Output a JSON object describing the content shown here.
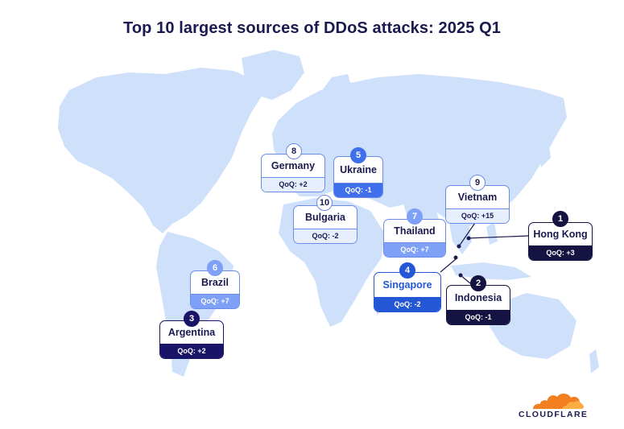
{
  "title": "Top 10 largest sources of DDoS attacks: 2025 Q1",
  "colors": {
    "land": "#cfe0fb",
    "card_border": "#6b8be8",
    "dark": "#141342",
    "navy": "#1a1469",
    "blue": "#2457d6",
    "mid_blue": "#7ea0f7",
    "logo_orange": "#f38020"
  },
  "entries": [
    {
      "rank": "1",
      "country": "Hong Kong",
      "qoq": "QoQ: +3"
    },
    {
      "rank": "2",
      "country": "Indonesia",
      "qoq": "QoQ: -1"
    },
    {
      "rank": "3",
      "country": "Argentina",
      "qoq": "QoQ: +2"
    },
    {
      "rank": "4",
      "country": "Singapore",
      "qoq": "QoQ: -2"
    },
    {
      "rank": "5",
      "country": "Ukraine",
      "qoq": "QoQ: -1"
    },
    {
      "rank": "6",
      "country": "Brazil",
      "qoq": "QoQ: +7"
    },
    {
      "rank": "7",
      "country": "Thailand",
      "qoq": "QoQ: +7"
    },
    {
      "rank": "8",
      "country": "Germany",
      "qoq": "QoQ: +2"
    },
    {
      "rank": "9",
      "country": "Vietnam",
      "qoq": "QoQ: +15"
    },
    {
      "rank": "10",
      "country": "Bulgaria",
      "qoq": "QoQ: -2"
    }
  ],
  "logo": {
    "text": "CLOUDFLARE",
    "icon": "cloud-icon"
  }
}
